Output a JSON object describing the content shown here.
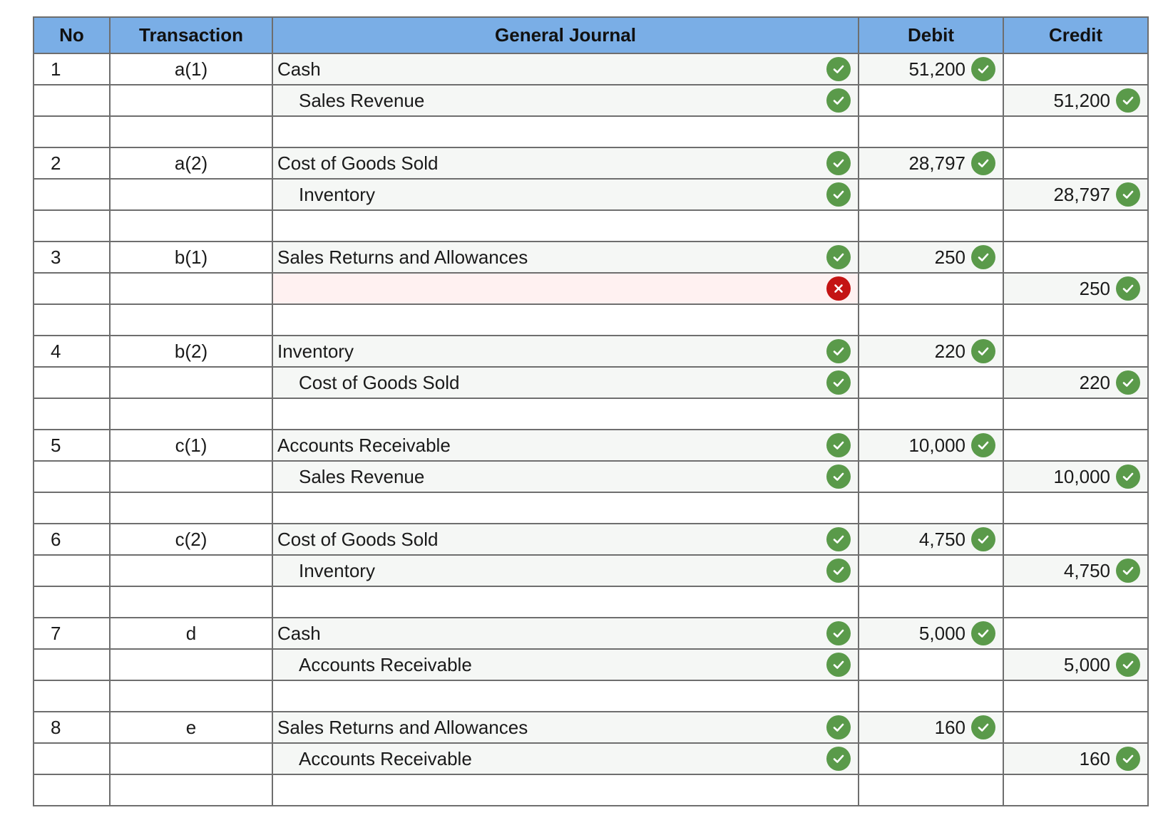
{
  "headers": {
    "no": "No",
    "transaction": "Transaction",
    "journal": "General Journal",
    "debit": "Debit",
    "credit": "Credit"
  },
  "rows": [
    {
      "no": "1",
      "txn": "a(1)",
      "account": "Cash",
      "indent": false,
      "debit": "51,200",
      "credit": "",
      "status": "correct",
      "blank": false
    },
    {
      "no": "",
      "txn": "",
      "account": "Sales Revenue",
      "indent": true,
      "debit": "",
      "credit": "51,200",
      "status": "correct",
      "blank": false
    },
    {
      "blank": true
    },
    {
      "no": "2",
      "txn": "a(2)",
      "account": "Cost of Goods Sold",
      "indent": false,
      "debit": "28,797",
      "credit": "",
      "status": "correct",
      "blank": false
    },
    {
      "no": "",
      "txn": "",
      "account": "Inventory",
      "indent": true,
      "debit": "",
      "credit": "28,797",
      "status": "correct",
      "blank": false
    },
    {
      "blank": true
    },
    {
      "no": "3",
      "txn": "b(1)",
      "account": "Sales Returns and Allowances",
      "indent": false,
      "debit": "250",
      "credit": "",
      "status": "correct",
      "blank": false
    },
    {
      "no": "",
      "txn": "",
      "account": "",
      "indent": true,
      "debit": "",
      "credit": "250",
      "status": "incorrect",
      "blank": false
    },
    {
      "blank": true
    },
    {
      "no": "4",
      "txn": "b(2)",
      "account": "Inventory",
      "indent": false,
      "debit": "220",
      "credit": "",
      "status": "correct",
      "blank": false
    },
    {
      "no": "",
      "txn": "",
      "account": "Cost of Goods Sold",
      "indent": true,
      "debit": "",
      "credit": "220",
      "status": "correct",
      "blank": false
    },
    {
      "blank": true
    },
    {
      "no": "5",
      "txn": "c(1)",
      "account": "Accounts Receivable",
      "indent": false,
      "debit": "10,000",
      "credit": "",
      "status": "correct",
      "blank": false
    },
    {
      "no": "",
      "txn": "",
      "account": "Sales Revenue",
      "indent": true,
      "debit": "",
      "credit": "10,000",
      "status": "correct",
      "blank": false
    },
    {
      "blank": true
    },
    {
      "no": "6",
      "txn": "c(2)",
      "account": "Cost of Goods Sold",
      "indent": false,
      "debit": "4,750",
      "credit": "",
      "status": "correct",
      "blank": false
    },
    {
      "no": "",
      "txn": "",
      "account": "Inventory",
      "indent": true,
      "debit": "",
      "credit": "4,750",
      "status": "correct",
      "blank": false
    },
    {
      "blank": true
    },
    {
      "no": "7",
      "txn": "d",
      "account": "Cash",
      "indent": false,
      "debit": "5,000",
      "credit": "",
      "status": "correct",
      "blank": false
    },
    {
      "no": "",
      "txn": "",
      "account": "Accounts Receivable",
      "indent": true,
      "debit": "",
      "credit": "5,000",
      "status": "correct",
      "blank": false
    },
    {
      "blank": true
    },
    {
      "no": "8",
      "txn": "e",
      "account": "Sales Returns and Allowances",
      "indent": false,
      "debit": "160",
      "credit": "",
      "status": "correct",
      "blank": false
    },
    {
      "no": "",
      "txn": "",
      "account": "Accounts Receivable",
      "indent": true,
      "debit": "",
      "credit": "160",
      "status": "correct",
      "blank": false
    },
    {
      "blank": true
    }
  ],
  "icons": {
    "correct": "check-circle-icon",
    "incorrect": "x-circle-icon"
  },
  "colors": {
    "header_bg": "#7aaee6",
    "correct": "#5a9a4a",
    "incorrect": "#c41414",
    "error_bg": "#fff1f1"
  }
}
